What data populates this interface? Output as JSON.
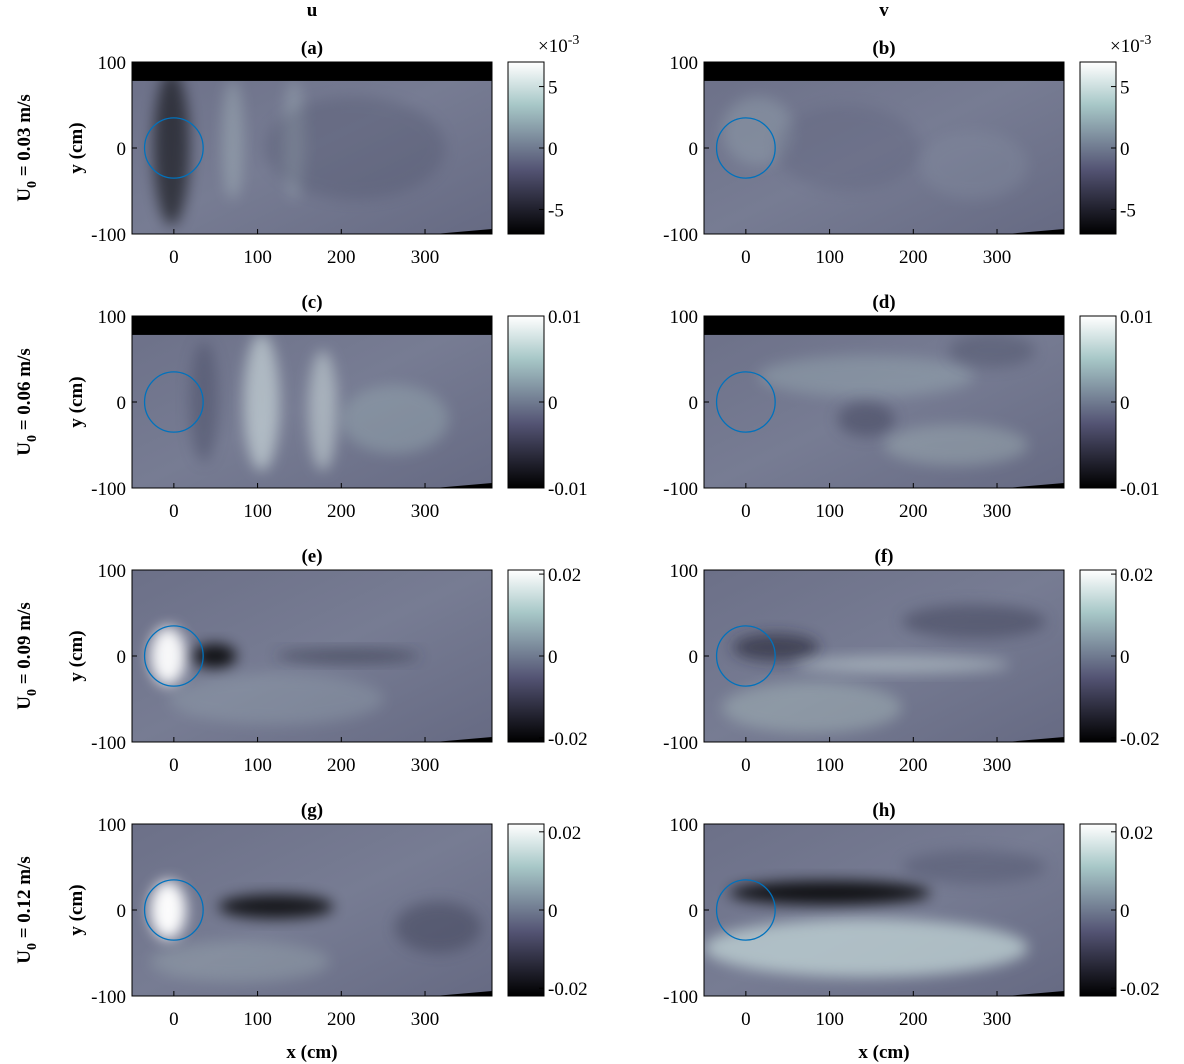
{
  "figure": {
    "column_titles": [
      "u",
      "v"
    ],
    "row_labels": [
      {
        "main": "U",
        "sub": "0",
        "rest": " = 0.03 m/s"
      },
      {
        "main": "U",
        "sub": "0",
        "rest": " = 0.06 m/s"
      },
      {
        "main": "U",
        "sub": "0",
        "rest": " = 0.09 m/s"
      },
      {
        "main": "U",
        "sub": "0",
        "rest": " = 0.12 m/s"
      }
    ]
  },
  "chart_data": [
    {
      "type": "heatmap",
      "title": "(a)",
      "ylabel": "y (cm)",
      "xlim": [
        -50,
        380
      ],
      "ylim": [
        -100,
        100
      ],
      "xticks": [
        0,
        100,
        200,
        300
      ],
      "yticks": [
        -100,
        0,
        100
      ],
      "circle": {
        "center": [
          0,
          0
        ],
        "radius": 35,
        "color": "#0072bd"
      },
      "colorbar": {
        "clim": [
          -0.007,
          0.007
        ],
        "ticks": [
          {
            "value": -0.005,
            "label": "-5"
          },
          0,
          {
            "value": 0.005,
            "label": "5"
          }
        ],
        "multiplier": {
          "base": "×10",
          "exponent": "-3"
        }
      }
    },
    {
      "type": "heatmap",
      "title": "(b)",
      "xlim": [
        -50,
        380
      ],
      "ylim": [
        -100,
        100
      ],
      "xticks": [
        0,
        100,
        200,
        300
      ],
      "yticks": [
        -100,
        0,
        100
      ],
      "circle": {
        "center": [
          0,
          0
        ],
        "radius": 35,
        "color": "#0072bd"
      },
      "colorbar": {
        "clim": [
          -0.007,
          0.007
        ],
        "ticks": [
          {
            "value": -0.005,
            "label": "-5"
          },
          0,
          {
            "value": 0.005,
            "label": "5"
          }
        ],
        "multiplier": {
          "base": "×10",
          "exponent": "-3"
        }
      }
    },
    {
      "type": "heatmap",
      "title": "(c)",
      "ylabel": "y (cm)",
      "xlim": [
        -50,
        380
      ],
      "ylim": [
        -100,
        100
      ],
      "xticks": [
        0,
        100,
        200,
        300
      ],
      "yticks": [
        -100,
        0,
        100
      ],
      "circle": {
        "center": [
          0,
          0
        ],
        "radius": 35,
        "color": "#0072bd"
      },
      "colorbar": {
        "clim": [
          -0.01,
          0.01
        ],
        "ticks": [
          -0.01,
          0,
          0.01
        ]
      }
    },
    {
      "type": "heatmap",
      "title": "(d)",
      "xlim": [
        -50,
        380
      ],
      "ylim": [
        -100,
        100
      ],
      "xticks": [
        0,
        100,
        200,
        300
      ],
      "yticks": [
        -100,
        0,
        100
      ],
      "circle": {
        "center": [
          0,
          0
        ],
        "radius": 35,
        "color": "#0072bd"
      },
      "colorbar": {
        "clim": [
          -0.01,
          0.01
        ],
        "ticks": [
          -0.01,
          0,
          0.01
        ]
      }
    },
    {
      "type": "heatmap",
      "title": "(e)",
      "ylabel": "y (cm)",
      "xlim": [
        -50,
        380
      ],
      "ylim": [
        -100,
        100
      ],
      "xticks": [
        0,
        100,
        200,
        300
      ],
      "yticks": [
        -100,
        0,
        100
      ],
      "circle": {
        "center": [
          0,
          0
        ],
        "radius": 35,
        "color": "#0072bd"
      },
      "colorbar": {
        "clim": [
          -0.021,
          0.021
        ],
        "ticks": [
          -0.02,
          0,
          0.02
        ]
      }
    },
    {
      "type": "heatmap",
      "title": "(f)",
      "xlim": [
        -50,
        380
      ],
      "ylim": [
        -100,
        100
      ],
      "xticks": [
        0,
        100,
        200,
        300
      ],
      "yticks": [
        -100,
        0,
        100
      ],
      "circle": {
        "center": [
          0,
          0
        ],
        "radius": 35,
        "color": "#0072bd"
      },
      "colorbar": {
        "clim": [
          -0.021,
          0.021
        ],
        "ticks": [
          -0.02,
          0,
          0.02
        ]
      }
    },
    {
      "type": "heatmap",
      "title": "(g)",
      "ylabel": "y (cm)",
      "xlabel": "x (cm)",
      "xlim": [
        -50,
        380
      ],
      "ylim": [
        -100,
        100
      ],
      "xticks": [
        0,
        100,
        200,
        300
      ],
      "yticks": [
        -100,
        0,
        100
      ],
      "circle": {
        "center": [
          0,
          0
        ],
        "radius": 35,
        "color": "#0072bd"
      },
      "colorbar": {
        "clim": [
          -0.022,
          0.022
        ],
        "ticks": [
          -0.02,
          0,
          0.02
        ]
      }
    },
    {
      "type": "heatmap",
      "title": "(h)",
      "xlabel": "x (cm)",
      "xlim": [
        -50,
        380
      ],
      "ylim": [
        -100,
        100
      ],
      "xticks": [
        0,
        100,
        200,
        300
      ],
      "yticks": [
        -100,
        0,
        100
      ],
      "circle": {
        "center": [
          0,
          0
        ],
        "radius": 35,
        "color": "#0072bd"
      },
      "colorbar": {
        "clim": [
          -0.022,
          0.022
        ],
        "ticks": [
          -0.02,
          0,
          0.02
        ]
      }
    }
  ]
}
